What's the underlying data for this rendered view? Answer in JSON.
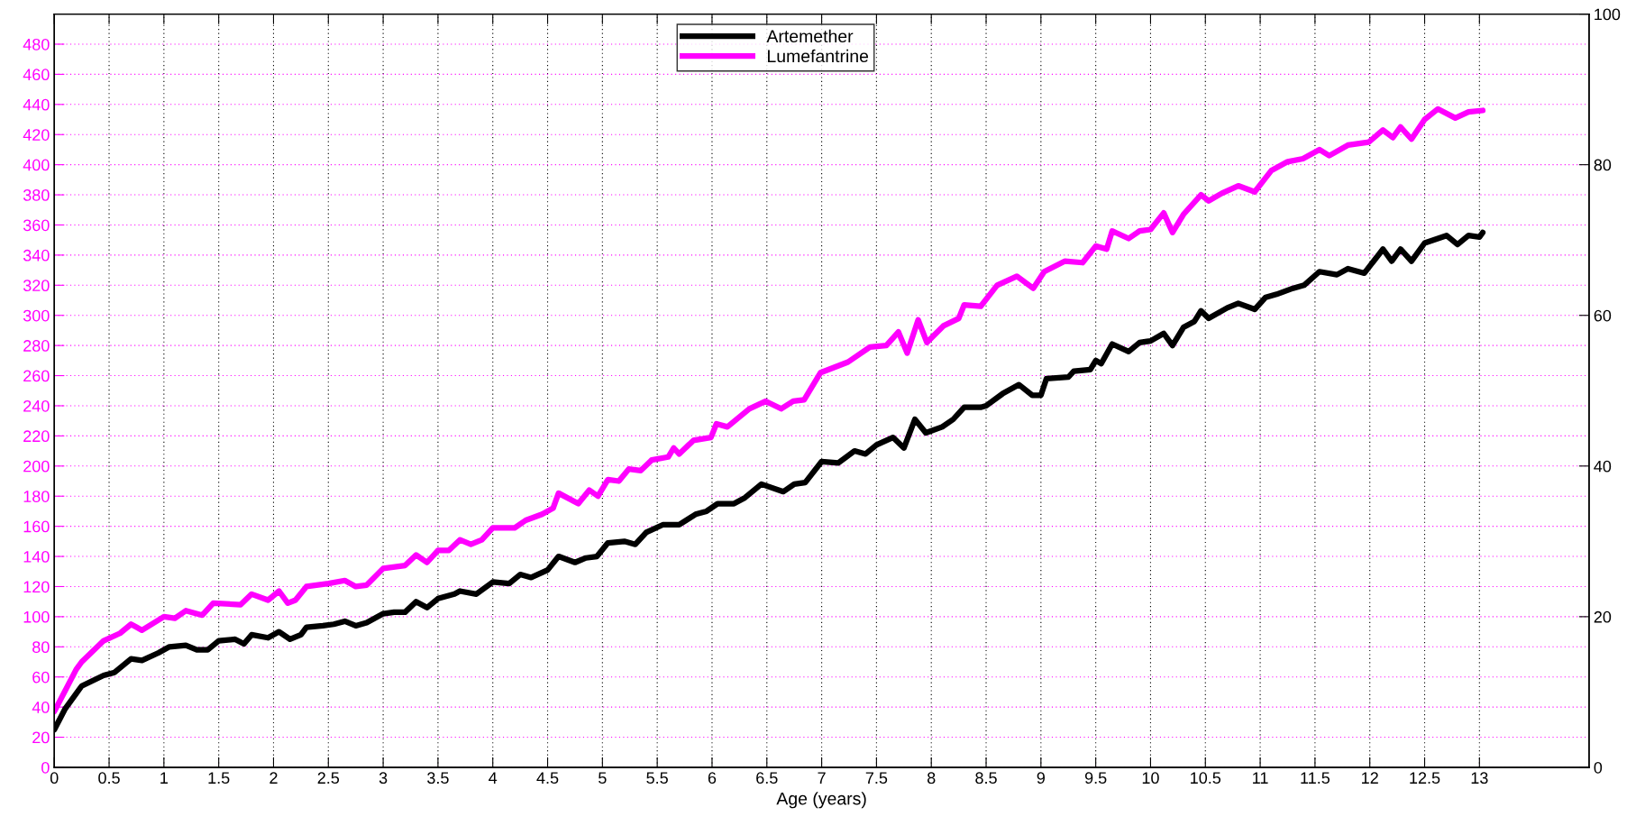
{
  "chart_data": {
    "type": "line",
    "xlabel": "Age (years)",
    "xlim": [
      0,
      14
    ],
    "xticks": [
      0,
      0.5,
      1,
      1.5,
      2,
      2.5,
      3,
      3.5,
      4,
      4.5,
      5,
      5.5,
      6,
      6.5,
      7,
      7.5,
      8,
      8.5,
      9,
      9.5,
      10,
      10.5,
      11,
      11.5,
      12,
      12.5,
      13
    ],
    "ylim": [
      0,
      500
    ],
    "yticks": [
      0,
      20,
      40,
      60,
      80,
      100,
      120,
      140,
      160,
      180,
      200,
      220,
      240,
      260,
      280,
      300,
      320,
      340,
      360,
      380,
      400,
      420,
      440,
      460,
      480
    ],
    "y2lim": [
      0,
      100
    ],
    "y2ticks": [
      0,
      20,
      40,
      60,
      80,
      100
    ],
    "grid": true,
    "legend": "top",
    "line_style": "solid",
    "series": [
      {
        "name": "Artemether",
        "color": "#000000",
        "axis": "y2",
        "x": [
          0,
          0.1,
          0.2,
          0.25,
          0.45,
          0.55,
          0.7,
          0.8,
          0.95,
          1.05,
          1.2,
          1.3,
          1.4,
          1.5,
          1.65,
          1.73,
          1.8,
          1.95,
          2.05,
          2.15,
          2.25,
          2.3,
          2.45,
          2.55,
          2.65,
          2.75,
          2.85,
          3.0,
          3.1,
          3.2,
          3.3,
          3.4,
          3.5,
          3.65,
          3.7,
          3.85,
          4.0,
          4.15,
          4.25,
          4.35,
          4.5,
          4.6,
          4.75,
          4.85,
          4.95,
          5.05,
          5.2,
          5.3,
          5.4,
          5.55,
          5.7,
          5.85,
          5.95,
          6.05,
          6.2,
          6.3,
          6.45,
          6.65,
          6.75,
          6.85,
          7.0,
          7.15,
          7.3,
          7.4,
          7.5,
          7.65,
          7.75,
          7.85,
          7.95,
          8.1,
          8.2,
          8.3,
          8.45,
          8.5,
          8.65,
          8.8,
          8.92,
          9.0,
          9.05,
          9.25,
          9.3,
          9.45,
          9.5,
          9.55,
          9.65,
          9.8,
          9.9,
          10.0,
          10.12,
          10.2,
          10.3,
          10.4,
          10.46,
          10.53,
          10.7,
          10.8,
          10.95,
          11.05,
          11.15,
          11.3,
          11.4,
          11.54,
          11.7,
          11.8,
          11.95,
          12.12,
          12.2,
          12.28,
          12.38,
          12.5,
          12.7,
          12.8,
          12.9,
          13.0,
          13.03
        ],
        "values": [
          5.0,
          7.8,
          9.8,
          10.8,
          12.2,
          12.6,
          14.4,
          14.2,
          15.2,
          16.0,
          16.2,
          15.6,
          15.6,
          16.8,
          17.0,
          16.4,
          17.6,
          17.2,
          18.0,
          17.0,
          17.6,
          18.6,
          18.8,
          19.0,
          19.4,
          18.8,
          19.2,
          20.4,
          20.6,
          20.6,
          22.0,
          21.2,
          22.4,
          23.0,
          23.4,
          23.0,
          24.6,
          24.4,
          25.6,
          25.2,
          26.2,
          28.0,
          27.2,
          27.8,
          28.0,
          29.8,
          30.0,
          29.6,
          31.2,
          32.2,
          32.2,
          33.6,
          34.0,
          35.0,
          35.0,
          35.8,
          37.6,
          36.6,
          37.6,
          37.8,
          40.6,
          40.4,
          42.0,
          41.6,
          42.8,
          43.8,
          42.4,
          46.2,
          44.4,
          45.2,
          46.2,
          47.8,
          47.8,
          48.0,
          49.6,
          50.8,
          49.4,
          49.4,
          51.6,
          51.8,
          52.6,
          52.8,
          54.0,
          53.6,
          56.2,
          55.2,
          56.4,
          56.6,
          57.6,
          56.0,
          58.4,
          59.2,
          60.6,
          59.6,
          61.0,
          61.6,
          60.8,
          62.4,
          62.8,
          63.6,
          64.0,
          65.8,
          65.4,
          66.2,
          65.6,
          68.8,
          67.2,
          68.8,
          67.2,
          69.6,
          70.6,
          69.4,
          70.6,
          70.4,
          71.0
        ]
      },
      {
        "name": "Lumefantrine",
        "color": "#ff00ff",
        "x": [
          0,
          0.1,
          0.2,
          0.25,
          0.35,
          0.45,
          0.6,
          0.7,
          0.75,
          0.8,
          1.0,
          1.1,
          1.2,
          1.35,
          1.45,
          1.7,
          1.8,
          1.95,
          2.05,
          2.13,
          2.2,
          2.3,
          2.5,
          2.65,
          2.75,
          2.85,
          3.0,
          3.2,
          3.3,
          3.4,
          3.5,
          3.6,
          3.7,
          3.8,
          3.9,
          4.0,
          4.2,
          4.3,
          4.45,
          4.55,
          4.6,
          4.78,
          4.88,
          4.96,
          5.05,
          5.15,
          5.24,
          5.35,
          5.45,
          5.6,
          5.65,
          5.7,
          5.83,
          5.99,
          6.04,
          6.14,
          6.34,
          6.49,
          6.63,
          6.74,
          6.84,
          6.99,
          7.24,
          7.44,
          7.59,
          7.7,
          7.78,
          7.88,
          7.96,
          8.11,
          8.25,
          8.3,
          8.45,
          8.6,
          8.78,
          8.93,
          9.03,
          9.22,
          9.38,
          9.5,
          9.6,
          9.65,
          9.8,
          9.9,
          10.0,
          10.12,
          10.2,
          10.3,
          10.46,
          10.53,
          10.65,
          10.8,
          10.95,
          11.1,
          11.25,
          11.39,
          11.54,
          11.63,
          11.8,
          11.99,
          12.12,
          12.21,
          12.28,
          12.38,
          12.5,
          12.62,
          12.78,
          12.9,
          13.03
        ],
        "values": [
          37,
          51,
          65,
          70,
          77,
          84,
          89,
          95,
          93,
          91,
          100,
          99,
          104,
          101,
          109,
          108,
          115,
          111,
          117,
          109,
          111,
          120,
          122,
          124,
          120,
          121,
          132,
          134,
          141,
          136,
          144,
          144,
          151,
          148,
          151,
          159,
          159,
          164,
          168,
          172,
          182,
          175,
          184,
          180,
          191,
          190,
          198,
          197,
          204,
          206,
          212,
          208,
          217,
          219,
          228,
          226,
          238,
          243,
          238,
          243,
          244,
          262,
          269,
          279,
          280,
          289,
          275,
          297,
          282,
          293,
          298,
          307,
          306,
          320,
          326,
          318,
          329,
          336,
          335,
          346,
          344,
          356,
          351,
          356,
          357,
          368,
          355,
          367,
          380,
          376,
          381,
          386,
          382,
          396,
          402,
          404,
          410,
          406,
          413,
          415,
          423,
          418,
          425,
          417,
          430,
          437,
          431,
          435,
          436
        ]
      }
    ]
  }
}
